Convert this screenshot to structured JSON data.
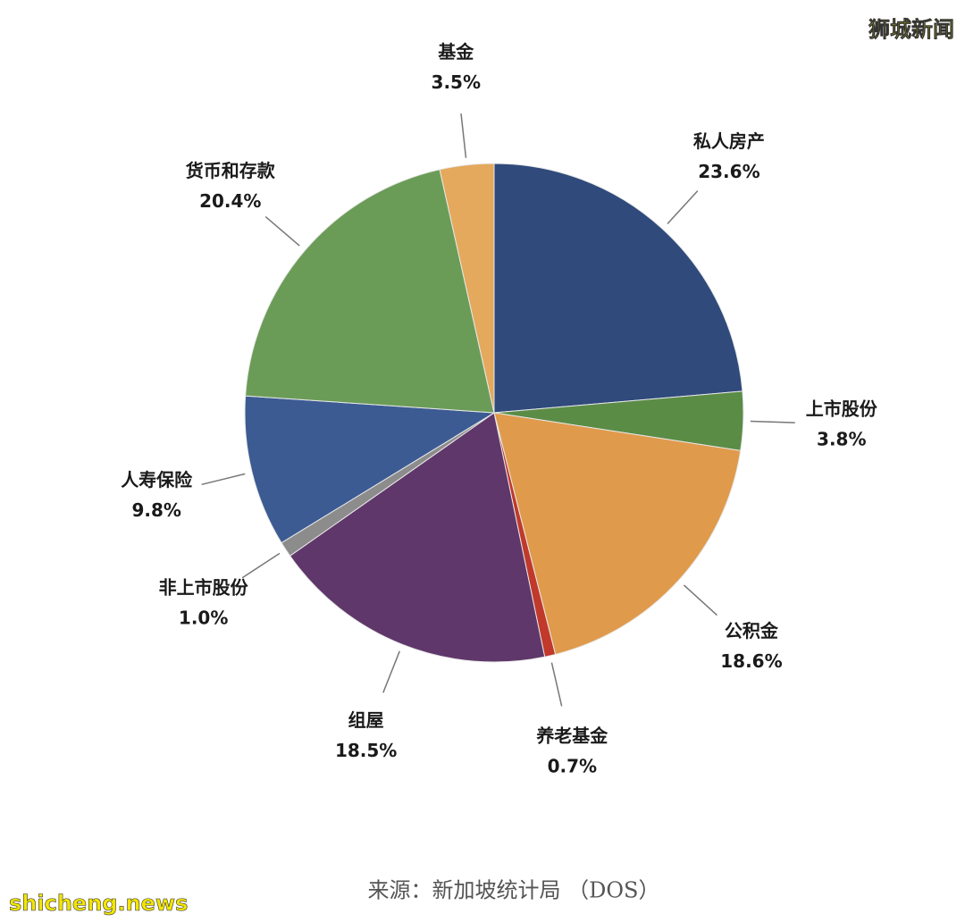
{
  "chart_data": {
    "type": "pie",
    "categories": [
      "私人房产",
      "上市股份",
      "公积金",
      "养老基金",
      "组屋",
      "非上市股份",
      "人寿保险",
      "货币和存款",
      "基金"
    ],
    "values": [
      23.6,
      3.8,
      18.6,
      0.7,
      18.5,
      1.0,
      9.8,
      20.4,
      3.5
    ],
    "value_labels": [
      "23.6%",
      "3.8%",
      "18.6%",
      "0.7%",
      "18.5%",
      "1.0%",
      "9.8%",
      "20.4%",
      "3.5%"
    ],
    "colors": [
      "#2f4a7b",
      "#5b8c46",
      "#e09a4c",
      "#c0392b",
      "#5f376a",
      "#8c8c8c",
      "#3c5b93",
      "#6b9c57",
      "#e4a95c"
    ],
    "source": "来源：新加坡统计局 （DOS）"
  },
  "watermarks": [
    "狮城新闻",
    "shicheng.news"
  ]
}
